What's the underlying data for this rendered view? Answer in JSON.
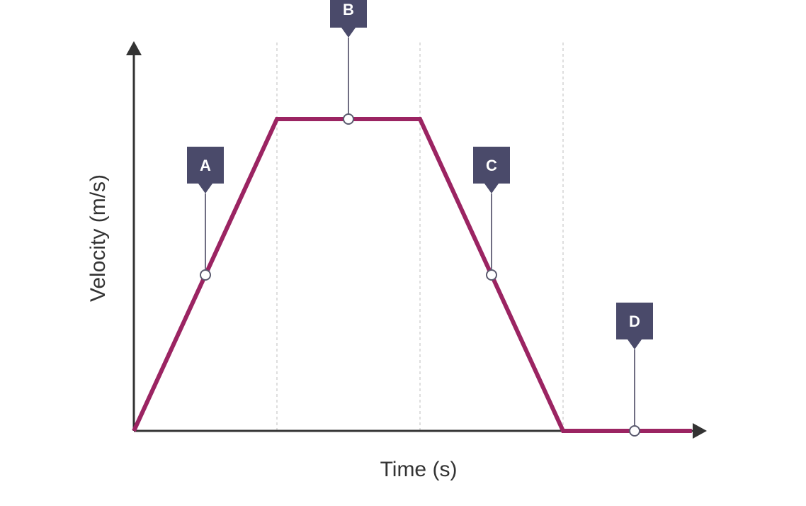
{
  "chart_data": {
    "type": "line",
    "xlabel": "Time (s)",
    "ylabel": "Velocity (m/s)",
    "xlim": [
      0,
      4
    ],
    "ylim": [
      0,
      1
    ],
    "grid_x": [
      1,
      2,
      3
    ],
    "series": [
      {
        "x": [
          0,
          1,
          2,
          3,
          3.9
        ],
        "y": [
          0,
          1,
          1,
          0,
          0
        ]
      }
    ],
    "annotations": [
      {
        "label": "A",
        "x": 0.5,
        "y": 0.5
      },
      {
        "label": "B",
        "x": 1.5,
        "y": 1.0
      },
      {
        "label": "C",
        "x": 2.5,
        "y": 0.5
      },
      {
        "label": "D",
        "x": 3.5,
        "y": 0.0
      }
    ],
    "colors": {
      "series": "#9b2462",
      "tag": "#4a4a6a",
      "axis": "#333333"
    }
  }
}
